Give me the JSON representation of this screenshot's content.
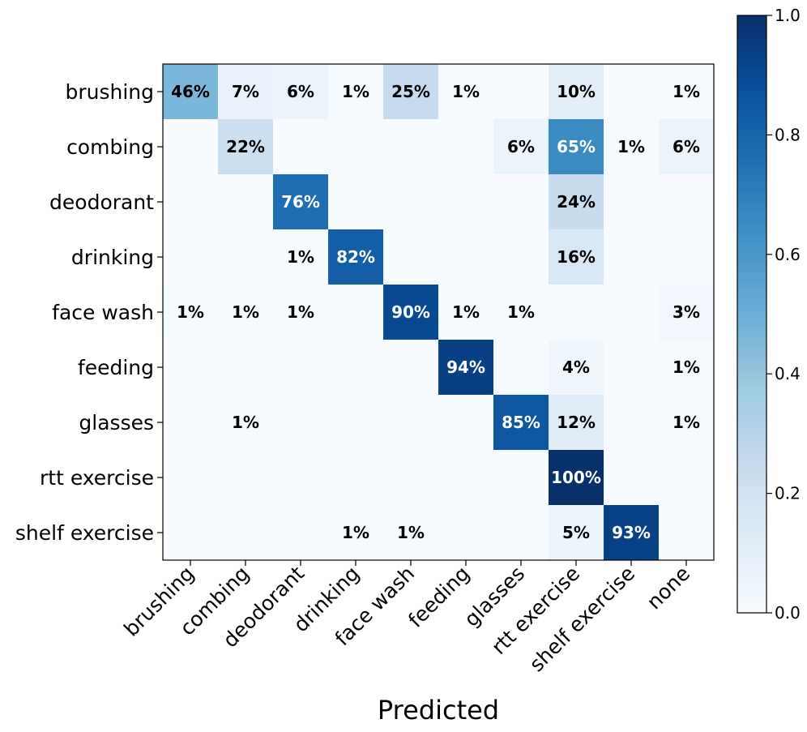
{
  "chart_data": {
    "type": "heatmap",
    "title": "",
    "xlabel": "Predicted",
    "ylabel": "",
    "rows": [
      "brushing",
      "combing",
      "deodorant",
      "drinking",
      "face wash",
      "feeding",
      "glasses",
      "rtt exercise",
      "shelf exercise"
    ],
    "columns": [
      "brushing",
      "combing",
      "deodorant",
      "drinking",
      "face wash",
      "feeding",
      "glasses",
      "rtt exercise",
      "shelf exercise",
      "none"
    ],
    "values": [
      [
        0.46,
        0.07,
        0.06,
        0.01,
        0.25,
        0.01,
        0.0,
        0.1,
        0.0,
        0.01
      ],
      [
        0.0,
        0.22,
        0.0,
        0.0,
        0.0,
        0.0,
        0.06,
        0.65,
        0.01,
        0.06
      ],
      [
        0.0,
        0.0,
        0.76,
        0.0,
        0.0,
        0.0,
        0.0,
        0.24,
        0.0,
        0.0
      ],
      [
        0.0,
        0.0,
        0.01,
        0.82,
        0.0,
        0.0,
        0.0,
        0.16,
        0.0,
        0.0
      ],
      [
        0.01,
        0.01,
        0.01,
        0.0,
        0.9,
        0.01,
        0.01,
        0.0,
        0.0,
        0.03
      ],
      [
        0.0,
        0.0,
        0.0,
        0.0,
        0.0,
        0.94,
        0.0,
        0.04,
        0.0,
        0.01
      ],
      [
        0.0,
        0.01,
        0.0,
        0.0,
        0.0,
        0.0,
        0.85,
        0.12,
        0.0,
        0.01
      ],
      [
        0.0,
        0.0,
        0.0,
        0.0,
        0.0,
        0.0,
        0.0,
        1.0,
        0.0,
        0.0
      ],
      [
        0.0,
        0.0,
        0.0,
        0.01,
        0.01,
        0.0,
        0.0,
        0.05,
        0.93,
        0.0
      ]
    ],
    "value_format": "percent",
    "colormap": "Blues",
    "colormap_range": [
      0.0,
      1.0
    ],
    "colorbar_ticks": [
      "0.0",
      "0.2",
      "0.4",
      "0.6",
      "0.8",
      "1.0"
    ],
    "text_color_dark": "#000000",
    "text_color_light": "#ffffff"
  }
}
